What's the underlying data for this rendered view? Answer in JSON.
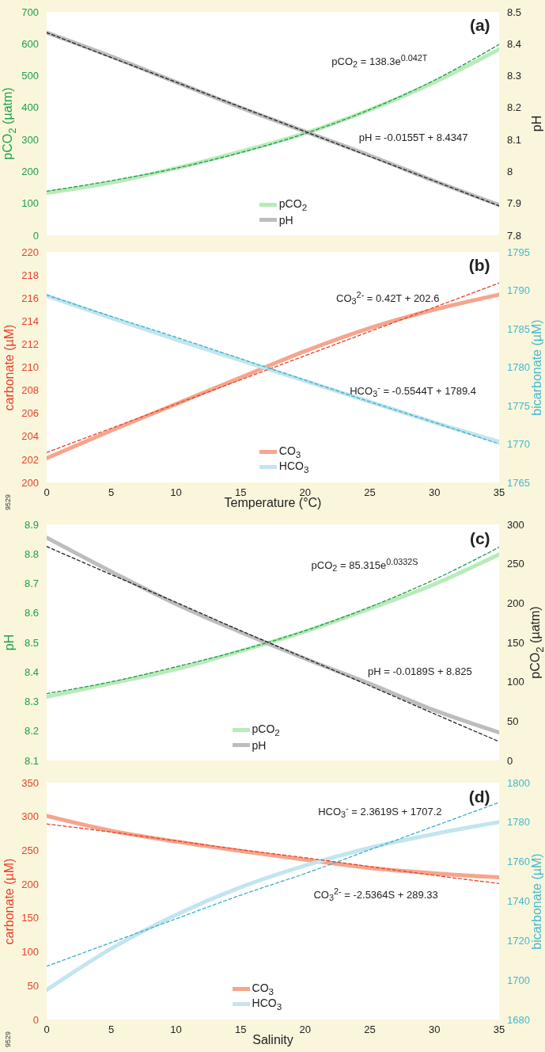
{
  "chart_data": [
    {
      "type": "line",
      "x": [
        0,
        5,
        10,
        15,
        20,
        25,
        30,
        35
      ],
      "xlim": [
        0,
        35
      ],
      "xticks": [
        0,
        5,
        10,
        15,
        20,
        25,
        30,
        35
      ],
      "ylim": [
        0,
        700
      ],
      "yticks": [
        0,
        100,
        200,
        300,
        400,
        500,
        600,
        700
      ],
      "y2lim": [
        7.8,
        8.5
      ],
      "y2ticks": [
        7.8,
        7.9,
        8,
        8.1,
        8.2,
        8.3,
        8.4,
        8.5
      ],
      "ylabel": "pCO$_{2}$ (µatm)",
      "y2label": "pH",
      "tick_labels": "y",
      "legend": "bottom",
      "grid": false,
      "annotations": [
        "(a)",
        "pCO$_{2}$ = 138.3e$^{0.042T}$",
        "pH = -0.0155T + 8.4347"
      ],
      "series": [
        {
          "name": "pCO$_{2}$",
          "color": "#b8ebb8",
          "axis": "y",
          "values": [
            133,
            165,
            210,
            262,
            320,
            393,
            480,
            583
          ]
        },
        {
          "name": "pH",
          "color": "#bdbdbd",
          "axis": "y2",
          "values": [
            8.435,
            8.36,
            8.28,
            8.2,
            8.125,
            8.05,
            7.97,
            7.895
          ]
        },
        {
          "color": "#1a9a4a",
          "axis": "y",
          "line_style": "dashed",
          "values": [
            138,
            171,
            210,
            259,
            319,
            394,
            486,
            598
          ]
        },
        {
          "color": "#222222",
          "axis": "y2",
          "line_style": "dashed",
          "values": [
            8.435,
            8.357,
            8.28,
            8.202,
            8.125,
            8.047,
            7.97,
            7.892
          ]
        }
      ]
    },
    {
      "type": "line",
      "x": [
        0,
        5,
        10,
        15,
        20,
        25,
        30,
        35
      ],
      "xlim": [
        0,
        35
      ],
      "xticks": [
        0,
        5,
        10,
        15,
        20,
        25,
        30,
        35
      ],
      "ylim": [
        200,
        220
      ],
      "yticks": [
        200,
        202,
        204,
        206,
        208,
        210,
        212,
        214,
        216,
        218,
        220
      ],
      "y2lim": [
        1765,
        1795
      ],
      "y2ticks": [
        1765,
        1770,
        1775,
        1780,
        1785,
        1790,
        1795
      ],
      "xlabel": "Temperature (°C)",
      "ylabel": "carbonate (µM)",
      "y2label": "bicarbonate (µM)",
      "legend": "bottom",
      "grid": false,
      "annotations": [
        "(b)",
        "CO$_{3}$$^{2-}$ = 0.42T + 202.6",
        "HCO$_{3}$$^{-}$ = -0.5544T + 1789.4",
        "9529"
      ],
      "series": [
        {
          "name": "CO$_{3}$",
          "color": "#f6a58c",
          "axis": "y",
          "values": [
            202.1,
            204.5,
            206.8,
            209.1,
            211.4,
            213.4,
            215,
            216.3
          ]
        },
        {
          "name": "HCO$_{3}$",
          "color": "#c2e5ef",
          "axis": "y2",
          "values": [
            1789.3,
            1786.4,
            1783.6,
            1780.9,
            1778.2,
            1775.5,
            1772.8,
            1770.3
          ]
        },
        {
          "color": "#e8402a",
          "axis": "y",
          "line_style": "dashed",
          "values": [
            202.6,
            204.7,
            206.8,
            208.9,
            211,
            213.1,
            215.2,
            217.3
          ]
        },
        {
          "color": "#36afc8",
          "axis": "y2",
          "line_style": "dashed",
          "values": [
            1789.4,
            1786.6,
            1783.9,
            1781.1,
            1778.3,
            1775.5,
            1772.8,
            1770
          ]
        }
      ]
    },
    {
      "type": "line",
      "x": [
        0,
        5,
        10,
        15,
        20,
        25,
        30,
        35
      ],
      "xlim": [
        0,
        35
      ],
      "xticks": [
        0,
        5,
        10,
        15,
        20,
        25,
        30,
        35
      ],
      "ylim": [
        8.1,
        8.9
      ],
      "yticks": [
        8.1,
        8.2,
        8.3,
        8.4,
        8.5,
        8.6,
        8.7,
        8.8,
        8.9
      ],
      "y2lim": [
        0,
        300
      ],
      "y2ticks": [
        0,
        50,
        100,
        150,
        200,
        250,
        300
      ],
      "ylabel": "pH",
      "y2label": "pCO$_{2}$ (µatm)",
      "tick_labels": "y",
      "legend": "bottom",
      "grid": false,
      "annotations": [
        "(c)",
        "pCO$_{2}$ = 85.315e$^{0.0332S}$",
        "pH = -0.0189S + 8.825"
      ],
      "series": [
        {
          "name": "pCO$_{2}$",
          "color": "#b8ebb8",
          "axis": "y2",
          "values": [
            81,
            98,
            116,
            139,
            164,
            193,
            224,
            262
          ]
        },
        {
          "name": "pH",
          "color": "#bdbdbd",
          "axis": "y",
          "values": [
            8.855,
            8.74,
            8.63,
            8.535,
            8.445,
            8.36,
            8.27,
            8.195
          ]
        },
        {
          "color": "#1a9a4a",
          "axis": "y2",
          "line_style": "dashed",
          "values": [
            85,
            100,
            119,
            140,
            165,
            195,
            230,
            271
          ]
        },
        {
          "color": "#222222",
          "axis": "y",
          "line_style": "dashed",
          "values": [
            8.825,
            8.73,
            8.636,
            8.54,
            8.447,
            8.353,
            8.258,
            8.164
          ]
        }
      ]
    },
    {
      "type": "line",
      "x": [
        0,
        5,
        10,
        15,
        20,
        25,
        30,
        35
      ],
      "xlim": [
        0,
        35
      ],
      "xticks": [
        0,
        5,
        10,
        15,
        20,
        25,
        30,
        35
      ],
      "ylim": [
        0,
        350
      ],
      "yticks": [
        0,
        50,
        100,
        150,
        200,
        250,
        300,
        350
      ],
      "y2lim": [
        1680,
        1800
      ],
      "y2ticks": [
        1680,
        1700,
        1720,
        1740,
        1760,
        1780,
        1800
      ],
      "xlabel": "Salinity",
      "ylabel": "carbonate (µM)",
      "y2label": "bicarbonate (µM)",
      "legend": "bottom",
      "grid": false,
      "annotations": [
        "(d)",
        "HCO$_{3}$$^{-}$ = 2.3619S + 1707.2",
        "CO$_{3}$$^{2-}$ = -2.5364S + 289.33",
        "9529"
      ],
      "series": [
        {
          "name": "CO$_{3}$",
          "color": "#f6a58c",
          "axis": "y",
          "values": [
            301,
            279,
            263,
            249,
            236,
            224,
            216,
            210
          ]
        },
        {
          "name": "HCO$_{3}$",
          "color": "#c2e5ef",
          "axis": "y2",
          "values": [
            1695,
            1716,
            1733,
            1747,
            1758,
            1767,
            1774,
            1780
          ]
        },
        {
          "color": "#e8402a",
          "axis": "y",
          "line_style": "dashed",
          "values": [
            289,
            277,
            264,
            251,
            239,
            226,
            213,
            201
          ]
        },
        {
          "color": "#36afc8",
          "axis": "y2",
          "line_style": "dashed",
          "values": [
            1707,
            1719,
            1731,
            1743,
            1754,
            1766,
            1778,
            1790
          ]
        }
      ]
    }
  ]
}
